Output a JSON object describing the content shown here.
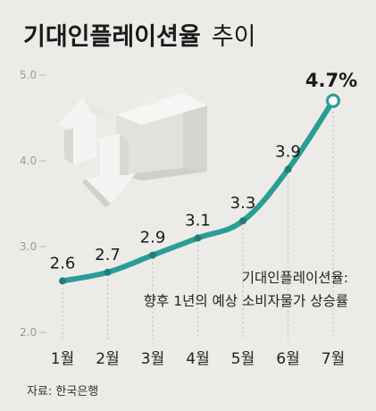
{
  "chart_data": {
    "type": "line",
    "title_bold": "기대인플레이션율",
    "title_rest": "추이",
    "categories": [
      "1월",
      "2월",
      "3월",
      "4월",
      "5월",
      "6월",
      "7월"
    ],
    "values": [
      2.6,
      2.7,
      2.9,
      3.1,
      3.3,
      3.9,
      4.7
    ],
    "data_labels": [
      "2.6",
      "2.7",
      "2.9",
      "3.1",
      "3.3",
      "3.9",
      "4.7%"
    ],
    "yticks": [
      "2.0",
      "3.0",
      "4.0",
      "5.0"
    ],
    "ylim": [
      2.0,
      5.0
    ],
    "grid": false,
    "line_color": "#2a9d95",
    "annotation_line1": "기대인플레이션율:",
    "annotation_line2": "향후 1년의 예상 소비자물가 상승률"
  },
  "source": "자료: 한국은행",
  "colors": {
    "background": "#ecebe8",
    "line": "#2a9d95"
  },
  "icons": [
    "rising-arrow-icon",
    "falling-arrow-icon",
    "building-icon"
  ]
}
